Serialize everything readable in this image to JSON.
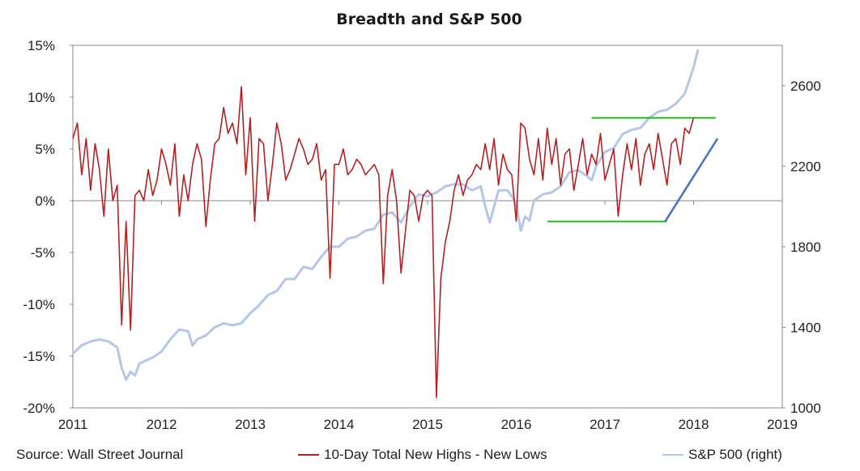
{
  "chart_data": {
    "type": "line",
    "title": "Breadth and S&P 500",
    "source": "Source: Wall Street Journal",
    "x_ticks": [
      "2011",
      "2012",
      "2013",
      "2014",
      "2015",
      "2016",
      "2017",
      "2018",
      "2019"
    ],
    "xlim": [
      2011,
      2019
    ],
    "y_left": {
      "ticks": [
        "15%",
        "10%",
        "5%",
        "0%",
        "-5%",
        "-10%",
        "-15%",
        "-20%"
      ],
      "range": [
        -20,
        15
      ]
    },
    "y_right": {
      "ticks": [
        "2600",
        "2200",
        "1800",
        "1400",
        "1000"
      ],
      "range": [
        1000,
        2800
      ]
    },
    "series": [
      {
        "name": "10-Day Total New Highs - New Lows",
        "axis": "left",
        "color": "#b22222",
        "x": [
          2011.0,
          2011.05,
          2011.1,
          2011.15,
          2011.2,
          2011.25,
          2011.3,
          2011.35,
          2011.4,
          2011.45,
          2011.5,
          2011.55,
          2011.6,
          2011.65,
          2011.7,
          2011.75,
          2011.8,
          2011.85,
          2011.9,
          2011.95,
          2012.0,
          2012.05,
          2012.1,
          2012.15,
          2012.2,
          2012.25,
          2012.3,
          2012.35,
          2012.4,
          2012.45,
          2012.5,
          2012.55,
          2012.6,
          2012.65,
          2012.7,
          2012.75,
          2012.8,
          2012.85,
          2012.9,
          2012.95,
          2013.0,
          2013.05,
          2013.1,
          2013.15,
          2013.2,
          2013.25,
          2013.3,
          2013.35,
          2013.4,
          2013.45,
          2013.5,
          2013.55,
          2013.6,
          2013.65,
          2013.7,
          2013.75,
          2013.8,
          2013.85,
          2013.9,
          2013.95,
          2014.0,
          2014.05,
          2014.1,
          2014.15,
          2014.2,
          2014.25,
          2014.3,
          2014.35,
          2014.4,
          2014.45,
          2014.5,
          2014.55,
          2014.6,
          2014.65,
          2014.7,
          2014.75,
          2014.8,
          2014.85,
          2014.9,
          2014.95,
          2015.0,
          2015.05,
          2015.1,
          2015.15,
          2015.2,
          2015.25,
          2015.3,
          2015.35,
          2015.4,
          2015.45,
          2015.5,
          2015.55,
          2015.6,
          2015.65,
          2015.7,
          2015.75,
          2015.8,
          2015.85,
          2015.9,
          2015.95,
          2016.0,
          2016.05,
          2016.1,
          2016.15,
          2016.2,
          2016.25,
          2016.3,
          2016.35,
          2016.4,
          2016.45,
          2016.5,
          2016.55,
          2016.6,
          2016.65,
          2016.7,
          2016.75,
          2016.8,
          2016.85,
          2016.9,
          2016.95,
          2017.0,
          2017.05,
          2017.1,
          2017.15,
          2017.2,
          2017.25,
          2017.3,
          2017.35,
          2017.4,
          2017.45,
          2017.5,
          2017.55,
          2017.6,
          2017.65,
          2017.7,
          2017.75,
          2017.8,
          2017.85,
          2017.9,
          2017.95,
          2018.0,
          2018.03
        ],
        "values": [
          6.0,
          7.5,
          2.5,
          6.0,
          1.0,
          5.5,
          3.0,
          -1.5,
          5.0,
          0.0,
          1.5,
          -12.0,
          -2.0,
          -12.5,
          0.5,
          1.0,
          0.0,
          3.0,
          0.5,
          2.0,
          5.0,
          3.5,
          1.5,
          5.5,
          -1.5,
          2.5,
          0.0,
          3.5,
          5.5,
          4.0,
          -2.5,
          2.0,
          5.5,
          6.0,
          9.0,
          6.5,
          7.5,
          5.5,
          11.0,
          2.5,
          8.0,
          -2.0,
          6.0,
          5.5,
          0.0,
          3.5,
          7.5,
          5.5,
          2.0,
          3.0,
          4.5,
          6.0,
          5.0,
          3.5,
          4.0,
          5.5,
          2.0,
          3.0,
          -7.5,
          3.5,
          3.5,
          5.0,
          2.5,
          3.0,
          4.0,
          3.5,
          2.5,
          3.0,
          3.5,
          2.5,
          -8.0,
          0.5,
          3.0,
          0.0,
          -7.0,
          -3.0,
          1.0,
          0.5,
          -2.0,
          0.5,
          1.0,
          0.5,
          -19.0,
          -7.5,
          -4.0,
          -2.0,
          1.0,
          2.5,
          0.5,
          2.0,
          2.5,
          3.5,
          3.0,
          5.5,
          3.0,
          6.0,
          1.5,
          4.5,
          3.0,
          2.5,
          -2.0,
          7.5,
          7.0,
          4.0,
          2.5,
          6.0,
          2.0,
          7.0,
          3.5,
          6.0,
          1.5,
          4.5,
          5.0,
          1.0,
          3.5,
          6.0,
          2.5,
          4.5,
          3.5,
          6.5,
          2.0,
          3.5,
          5.0,
          -1.5,
          2.5,
          5.5,
          3.0,
          6.0,
          1.5,
          4.5,
          5.5,
          3.0,
          6.5,
          4.0,
          1.5,
          5.5,
          6.0,
          3.5,
          7.0,
          6.5,
          8.0,
          8.0
        ],
        "notes": "approximate"
      },
      {
        "name": "S&P 500 (right)",
        "axis": "right",
        "color": "#b4c7e7",
        "x": [
          2011.0,
          2011.1,
          2011.2,
          2011.3,
          2011.4,
          2011.5,
          2011.55,
          2011.6,
          2011.65,
          2011.7,
          2011.75,
          2011.8,
          2011.9,
          2012.0,
          2012.1,
          2012.2,
          2012.3,
          2012.35,
          2012.4,
          2012.5,
          2012.6,
          2012.7,
          2012.8,
          2012.9,
          2013.0,
          2013.1,
          2013.2,
          2013.3,
          2013.4,
          2013.5,
          2013.6,
          2013.7,
          2013.8,
          2013.9,
          2014.0,
          2014.1,
          2014.2,
          2014.3,
          2014.4,
          2014.5,
          2014.6,
          2014.7,
          2014.8,
          2014.9,
          2015.0,
          2015.1,
          2015.2,
          2015.3,
          2015.4,
          2015.5,
          2015.6,
          2015.65,
          2015.7,
          2015.8,
          2015.9,
          2016.0,
          2016.05,
          2016.1,
          2016.15,
          2016.2,
          2016.3,
          2016.4,
          2016.5,
          2016.6,
          2016.7,
          2016.8,
          2016.85,
          2016.9,
          2017.0,
          2017.1,
          2017.2,
          2017.3,
          2017.4,
          2017.5,
          2017.6,
          2017.7,
          2017.8,
          2017.9,
          2018.0,
          2018.05
        ],
        "values": [
          1270,
          1310,
          1330,
          1340,
          1330,
          1300,
          1200,
          1140,
          1180,
          1160,
          1220,
          1230,
          1250,
          1280,
          1340,
          1390,
          1380,
          1310,
          1340,
          1360,
          1400,
          1420,
          1410,
          1420,
          1470,
          1510,
          1560,
          1580,
          1640,
          1640,
          1700,
          1690,
          1750,
          1800,
          1800,
          1840,
          1850,
          1880,
          1890,
          1960,
          1970,
          1920,
          2000,
          2060,
          2050,
          2070,
          2100,
          2110,
          2110,
          2080,
          2100,
          2000,
          1920,
          2080,
          2080,
          2020,
          1880,
          1950,
          1930,
          2030,
          2060,
          2070,
          2100,
          2170,
          2180,
          2150,
          2130,
          2200,
          2270,
          2290,
          2360,
          2380,
          2390,
          2440,
          2470,
          2480,
          2510,
          2560,
          2690,
          2780
        ],
        "notes": "approximate"
      }
    ],
    "annotations": [
      {
        "type": "hline",
        "color": "#22bb22",
        "y": 8.0,
        "x": [
          2016.85,
          2018.25
        ]
      },
      {
        "type": "hline",
        "color": "#22bb22",
        "y": -2.0,
        "x": [
          2016.35,
          2017.7
        ]
      },
      {
        "type": "trendline",
        "color": "#4472c4",
        "points": [
          [
            2017.68,
            -2.0
          ],
          [
            2018.27,
            6.0
          ]
        ]
      }
    ],
    "legend_position": "bottom"
  }
}
